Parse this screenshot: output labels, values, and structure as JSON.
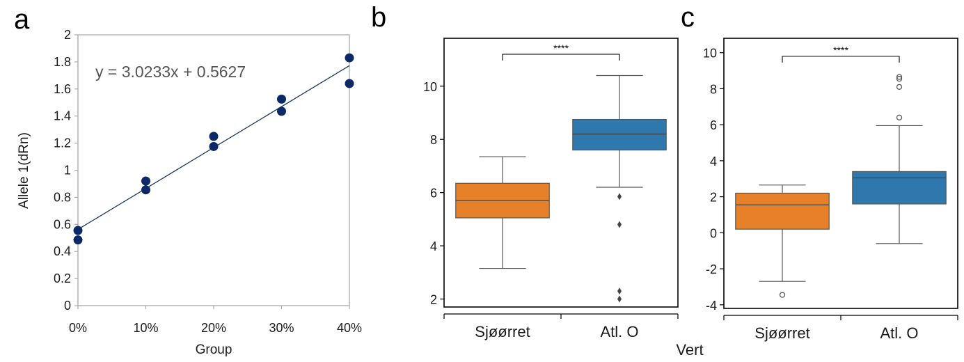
{
  "figure": {
    "panel_labels": [
      "a",
      "b",
      "c"
    ],
    "shared_xlabel": "Vert"
  },
  "chart_data": [
    {
      "panel": "a",
      "type": "scatter",
      "title": "",
      "xlabel": "Group",
      "ylabel": "Allele 1(dRn)",
      "x_categories": [
        "0%",
        "10%",
        "20%",
        "30%",
        "40%"
      ],
      "x_values": [
        0,
        0.1,
        0.2,
        0.3,
        0.4
      ],
      "ylim": [
        0,
        2
      ],
      "yticks": [
        0,
        0.2,
        0.4,
        0.6,
        0.8,
        1,
        1.2,
        1.4,
        1.6,
        1.8,
        2
      ],
      "ytick_labels": [
        "0",
        "0.2",
        "0.4",
        "0.6",
        "0.8",
        "1",
        "1.2",
        "1.4",
        "1.6",
        "1.8",
        "2"
      ],
      "points": [
        {
          "x": 0,
          "y": 0.555
        },
        {
          "x": 0,
          "y": 0.485
        },
        {
          "x": 0.1,
          "y": 0.92
        },
        {
          "x": 0.1,
          "y": 0.855
        },
        {
          "x": 0.2,
          "y": 1.25
        },
        {
          "x": 0.2,
          "y": 1.175
        },
        {
          "x": 0.3,
          "y": 1.525
        },
        {
          "x": 0.3,
          "y": 1.435
        },
        {
          "x": 0.4,
          "y": 1.83
        },
        {
          "x": 0.4,
          "y": 1.64
        }
      ],
      "trendline": {
        "slope": 3.0233,
        "intercept": 0.5627,
        "equation": "y = 3.0233x + 0.5627"
      },
      "point_color": "#0d2866",
      "line_color": "#1b3a5c",
      "grid": false
    },
    {
      "panel": "b",
      "type": "box",
      "xlabel": "",
      "ylabel": "",
      "categories": [
        "Sjøørret",
        "Atl. O"
      ],
      "ylim": [
        1.7,
        11.8
      ],
      "yticks": [
        2,
        4,
        6,
        8,
        10
      ],
      "ytick_labels": [
        "2",
        "4",
        "6",
        "8",
        "10"
      ],
      "boxes": [
        {
          "name": "Sjøørret",
          "whisker_low": 3.15,
          "q1": 5.05,
          "median": 5.7,
          "q3": 6.35,
          "whisker_high": 7.35,
          "outliers": [],
          "color": "#e6812a"
        },
        {
          "name": "Atl. O",
          "whisker_low": 6.2,
          "q1": 7.6,
          "median": 8.2,
          "q3": 8.75,
          "whisker_high": 10.4,
          "outliers": [
            5.85,
            4.8,
            2.3,
            2.0
          ],
          "color": "#2f78ad"
        }
      ],
      "significance": {
        "label": "****",
        "level": 11.2
      },
      "grid": false
    },
    {
      "panel": "c",
      "type": "box",
      "xlabel": "",
      "ylabel": "",
      "categories": [
        "Sjøørret",
        "Atl. O"
      ],
      "ylim": [
        -4.2,
        10.8
      ],
      "yticks": [
        -4,
        -2,
        0,
        2,
        4,
        6,
        8,
        10
      ],
      "ytick_labels": [
        "-4",
        "-2",
        "0",
        "2",
        "4",
        "6",
        "8",
        "10"
      ],
      "boxes": [
        {
          "name": "Sjøørret",
          "whisker_low": -2.7,
          "q1": 0.2,
          "median": 1.55,
          "q3": 2.2,
          "whisker_high": 2.65,
          "outliers": [
            -3.45
          ],
          "color": "#e6812a"
        },
        {
          "name": "Atl. O",
          "whisker_low": -0.6,
          "q1": 1.6,
          "median": 3.05,
          "q3": 3.4,
          "whisker_high": 5.95,
          "outliers": [
            6.4,
            8.1,
            8.55,
            8.65
          ],
          "color": "#2f78ad"
        }
      ],
      "significance": {
        "label": "****",
        "level": 9.8
      },
      "grid": false
    }
  ]
}
